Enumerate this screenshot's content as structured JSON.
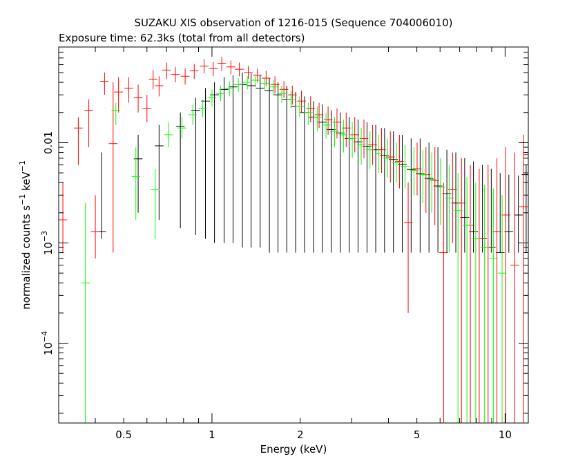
{
  "chart_data": {
    "type": "scatter",
    "title": "SUZAKU XIS observation of 1216-015 (Sequence 704006010)",
    "subtitle": "Exposure time: 62.3ks (total from all detectors)",
    "xlabel": "Energy (keV)",
    "ylabel": "normalized counts s^-1 keV^-1",
    "xscale": "log",
    "yscale": "log",
    "xlim": [
      0.3,
      12
    ],
    "ylim": [
      1.6e-05,
      0.09
    ],
    "grid": false,
    "x_tick_labels": [
      {
        "v": 0.5,
        "t": "0.5"
      },
      {
        "v": 1,
        "t": "1"
      },
      {
        "v": 2,
        "t": "2"
      },
      {
        "v": 5,
        "t": "5"
      },
      {
        "v": 10,
        "t": "10"
      }
    ],
    "y_tick_labels": [
      {
        "v": 0.0001,
        "base": "10",
        "exp": "−4"
      },
      {
        "v": 0.001,
        "base": "10",
        "exp": "−3"
      },
      {
        "v": 0.01,
        "base": "0.01",
        "exp": ""
      }
    ],
    "series": [
      {
        "color": "#000000",
        "points": [
          [
            0.42,
            0.0013,
            0.0011,
            0.008
          ],
          [
            0.56,
            0.0069,
            0.002,
            0.012
          ],
          [
            0.66,
            0.0093,
            0.0017,
            0.015
          ],
          [
            0.78,
            0.0145,
            0.0014,
            0.02
          ],
          [
            0.88,
            0.021,
            0.0012,
            0.028
          ],
          [
            0.95,
            0.026,
            0.0011,
            0.035
          ],
          [
            1.02,
            0.03,
            0.001,
            0.04
          ],
          [
            1.1,
            0.034,
            0.001,
            0.045
          ],
          [
            1.18,
            0.036,
            0.001,
            0.047
          ],
          [
            1.27,
            0.038,
            0.0009,
            0.05
          ],
          [
            1.36,
            0.037,
            0.0009,
            0.049
          ],
          [
            1.46,
            0.035,
            0.0009,
            0.047
          ],
          [
            1.57,
            0.033,
            0.0008,
            0.044
          ],
          [
            1.68,
            0.03,
            0.0008,
            0.04
          ],
          [
            1.8,
            0.027,
            0.0008,
            0.037
          ],
          [
            1.93,
            0.023,
            0.0008,
            0.032
          ],
          [
            2.07,
            0.02,
            0.0008,
            0.029
          ],
          [
            2.22,
            0.018,
            0.0008,
            0.026
          ],
          [
            2.38,
            0.016,
            0.0008,
            0.024
          ],
          [
            2.55,
            0.0135,
            0.0008,
            0.021
          ],
          [
            2.74,
            0.0125,
            0.0008,
            0.02
          ],
          [
            2.94,
            0.011,
            0.0008,
            0.018
          ],
          [
            3.15,
            0.0102,
            0.0008,
            0.017
          ],
          [
            3.38,
            0.0092,
            0.0008,
            0.016
          ],
          [
            3.62,
            0.0085,
            0.0008,
            0.015
          ],
          [
            3.88,
            0.0075,
            0.0008,
            0.014
          ],
          [
            4.16,
            0.0068,
            0.0008,
            0.013
          ],
          [
            4.46,
            0.0061,
            0.0008,
            0.012
          ],
          [
            4.78,
            0.0054,
            0.0008,
            0.011
          ],
          [
            5.13,
            0.0049,
            0.0008,
            0.011
          ],
          [
            5.5,
            0.0044,
            0.0008,
            0.01
          ],
          [
            5.9,
            0.0037,
            0.0008,
            0.009
          ],
          [
            6.33,
            0.0031,
            0.0008,
            0.0085
          ],
          [
            6.79,
            0.0025,
            0.0008,
            0.008
          ],
          [
            7.28,
            0.0018,
            0.0008,
            0.007
          ],
          [
            7.8,
            0.0013,
            0.0008,
            0.0065
          ],
          [
            8.37,
            0.0011,
            0.0008,
            0.006
          ],
          [
            8.97,
            0.0009,
            0.0008,
            0.0055
          ],
          [
            9.62,
            0.0008,
            0.0008,
            0.005
          ],
          [
            10.3,
            0.0013,
            0.0008,
            0.0048
          ],
          [
            11.1,
            0.0019,
            0.0008,
            0.0047
          ],
          [
            11.8,
            0.0048,
            0.0008,
            0.006
          ]
        ]
      },
      {
        "color": "#ff0000",
        "points": [
          [
            0.31,
            0.0017,
            0.0008,
            0.004
          ],
          [
            0.35,
            0.014,
            0.006,
            0.018
          ],
          [
            0.38,
            0.021,
            0.009,
            0.027
          ],
          [
            0.4,
            0.0013,
            0.0007,
            0.003
          ],
          [
            0.43,
            0.041,
            0.03,
            0.05
          ],
          [
            0.46,
            0.0098,
            0.0008,
            0.04
          ],
          [
            0.48,
            0.032,
            0.02,
            0.045
          ],
          [
            0.52,
            0.035,
            0.025,
            0.045
          ],
          [
            0.56,
            0.028,
            0.02,
            0.038
          ],
          [
            0.6,
            0.022,
            0.016,
            0.03
          ],
          [
            0.63,
            0.043,
            0.034,
            0.053
          ],
          [
            0.66,
            0.037,
            0.029,
            0.046
          ],
          [
            0.7,
            0.053,
            0.043,
            0.063
          ],
          [
            0.75,
            0.048,
            0.04,
            0.057
          ],
          [
            0.81,
            0.046,
            0.038,
            0.055
          ],
          [
            0.87,
            0.052,
            0.043,
            0.061
          ],
          [
            0.94,
            0.058,
            0.049,
            0.068
          ],
          [
            1.01,
            0.055,
            0.046,
            0.064
          ],
          [
            1.08,
            0.062,
            0.052,
            0.072
          ],
          [
            1.16,
            0.057,
            0.048,
            0.066
          ],
          [
            1.24,
            0.054,
            0.046,
            0.063
          ],
          [
            1.33,
            0.05,
            0.043,
            0.058
          ],
          [
            1.43,
            0.047,
            0.04,
            0.055
          ],
          [
            1.53,
            0.044,
            0.037,
            0.052
          ],
          [
            1.64,
            0.038,
            0.031,
            0.046
          ],
          [
            1.76,
            0.034,
            0.028,
            0.041
          ],
          [
            1.88,
            0.03,
            0.024,
            0.037
          ],
          [
            2.02,
            0.026,
            0.02,
            0.033
          ],
          [
            2.17,
            0.022,
            0.016,
            0.029
          ],
          [
            2.32,
            0.019,
            0.014,
            0.025
          ],
          [
            2.49,
            0.017,
            0.012,
            0.023
          ],
          [
            2.67,
            0.016,
            0.011,
            0.022
          ],
          [
            2.87,
            0.014,
            0.009,
            0.02
          ],
          [
            3.07,
            0.012,
            0.008,
            0.018
          ],
          [
            3.3,
            0.011,
            0.007,
            0.017
          ],
          [
            3.53,
            0.0095,
            0.006,
            0.015
          ],
          [
            3.79,
            0.0085,
            0.005,
            0.014
          ],
          [
            4.06,
            0.0072,
            0.004,
            0.013
          ],
          [
            4.36,
            0.0065,
            0.0035,
            0.012
          ],
          [
            4.67,
            0.0016,
            0.0002,
            0.004
          ],
          [
            5.01,
            0.0055,
            0.003,
            0.01
          ],
          [
            5.37,
            0.0048,
            0.002,
            0.009
          ],
          [
            5.76,
            0.0042,
            0.0015,
            0.009
          ],
          [
            6.17,
            0.0008,
            1e-05,
            0.004
          ],
          [
            6.62,
            0.0034,
            0.001,
            0.008
          ],
          [
            7.1,
            0.0025,
            1e-05,
            0.007
          ],
          [
            7.61,
            0.0015,
            1e-05,
            0.006
          ],
          [
            8.16,
            0.0011,
            1e-05,
            0.0055
          ],
          [
            8.75,
            0.0009,
            1e-05,
            0.006
          ],
          [
            9.38,
            0.0013,
            1e-05,
            0.007
          ],
          [
            10.06,
            0.0019,
            1e-05,
            0.009
          ],
          [
            10.79,
            0.0006,
            1e-05,
            0.008
          ],
          [
            11.56,
            0.0023,
            1e-05,
            0.012
          ],
          [
            12.0,
            0.0076,
            1e-05,
            0.017
          ]
        ]
      },
      {
        "color": "#00ff00",
        "points": [
          [
            0.37,
            0.0004,
            1e-05,
            0.0025
          ],
          [
            0.47,
            0.021,
            0.015,
            0.025
          ],
          [
            0.55,
            0.0046,
            0.0017,
            0.009
          ],
          [
            0.64,
            0.0034,
            0.0011,
            0.0055
          ],
          [
            0.71,
            0.012,
            0.009,
            0.016
          ],
          [
            0.79,
            0.014,
            0.011,
            0.018
          ],
          [
            0.86,
            0.019,
            0.015,
            0.024
          ],
          [
            0.93,
            0.022,
            0.018,
            0.027
          ],
          [
            1.0,
            0.028,
            0.023,
            0.034
          ],
          [
            1.07,
            0.031,
            0.026,
            0.037
          ],
          [
            1.15,
            0.035,
            0.029,
            0.041
          ],
          [
            1.23,
            0.038,
            0.032,
            0.044
          ],
          [
            1.32,
            0.04,
            0.034,
            0.046
          ],
          [
            1.41,
            0.042,
            0.036,
            0.048
          ],
          [
            1.51,
            0.039,
            0.033,
            0.045
          ],
          [
            1.62,
            0.036,
            0.03,
            0.042
          ],
          [
            1.73,
            0.031,
            0.025,
            0.037
          ],
          [
            1.86,
            0.027,
            0.022,
            0.033
          ],
          [
            1.99,
            0.023,
            0.018,
            0.029
          ],
          [
            2.13,
            0.02,
            0.015,
            0.025
          ],
          [
            2.29,
            0.018,
            0.013,
            0.023
          ],
          [
            2.45,
            0.015,
            0.011,
            0.02
          ],
          [
            2.62,
            0.013,
            0.009,
            0.018
          ],
          [
            2.81,
            0.012,
            0.008,
            0.017
          ],
          [
            3.01,
            0.011,
            0.007,
            0.016
          ],
          [
            3.23,
            0.0095,
            0.006,
            0.014
          ],
          [
            3.46,
            0.0085,
            0.0055,
            0.013
          ],
          [
            3.71,
            0.0078,
            0.005,
            0.012
          ],
          [
            3.97,
            0.007,
            0.0045,
            0.011
          ],
          [
            4.26,
            0.0063,
            0.004,
            0.01
          ],
          [
            4.56,
            0.0058,
            0.0035,
            0.0095
          ],
          [
            4.89,
            0.0053,
            0.003,
            0.009
          ],
          [
            5.24,
            0.0048,
            0.0025,
            0.0085
          ],
          [
            5.62,
            0.0043,
            0.002,
            0.008
          ],
          [
            6.02,
            0.0036,
            0.0015,
            0.007
          ],
          [
            6.45,
            0.0028,
            0.0008,
            0.006
          ],
          [
            6.91,
            0.0021,
            1e-05,
            0.005
          ],
          [
            7.41,
            0.0015,
            1e-05,
            0.0045
          ],
          [
            7.94,
            0.0011,
            1e-05,
            0.004
          ],
          [
            8.51,
            0.0009,
            1e-05,
            0.0038
          ],
          [
            9.12,
            0.0007,
            1e-05,
            0.0035
          ],
          [
            9.77,
            0.0005,
            1e-05,
            0.003
          ]
        ]
      }
    ]
  }
}
